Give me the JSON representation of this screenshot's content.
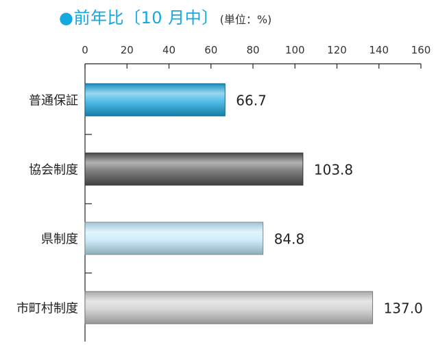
{
  "chart_data": {
    "type": "bar",
    "orientation": "horizontal",
    "title": "●前年比〔10 月中〕",
    "unit_note": "(単位：%)",
    "categories": [
      "普通保証",
      "協会制度",
      "県制度",
      "市町村制度"
    ],
    "values": [
      66.7,
      103.8,
      84.8,
      137.0
    ],
    "value_labels": [
      "66.7",
      "103.8",
      "84.8",
      "137.0"
    ],
    "x_ticks": [
      0,
      20,
      40,
      60,
      80,
      100,
      120,
      140,
      160
    ],
    "xlim": [
      0,
      160
    ],
    "axis_position": "top",
    "grid": false,
    "bar_colors": [
      "#1aa6e0",
      "#555555",
      "#bfe6f8",
      "#c8c8c8"
    ]
  }
}
